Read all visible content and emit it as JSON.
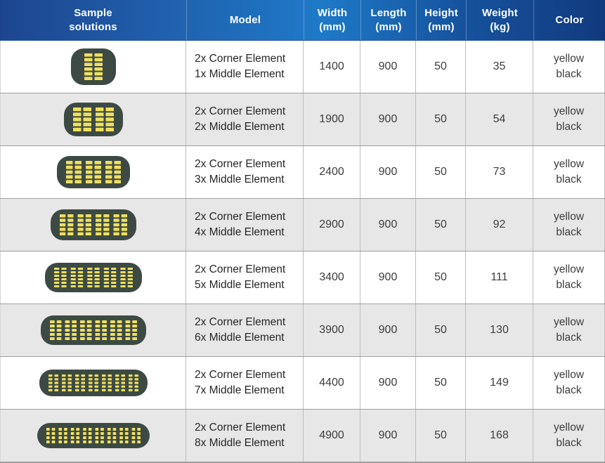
{
  "table": {
    "columns": [
      {
        "line1": "Sample",
        "line2": "solutions"
      },
      {
        "line1": "Model",
        "line2": ""
      },
      {
        "line1": "Width",
        "line2": "(mm)"
      },
      {
        "line1": "Length",
        "line2": "(mm)"
      },
      {
        "line1": "Height",
        "line2": "(mm)"
      },
      {
        "line1": "Weight",
        "line2": "(kg)"
      },
      {
        "line1": "Color",
        "line2": ""
      }
    ],
    "rows": [
      {
        "sample_icon": "modular-mat-top-view",
        "corner_elements": 2,
        "middle_elements": 1,
        "model_line1": "2x Corner Element",
        "model_line2": "1x Middle Element",
        "width_mm": "1400",
        "length_mm": "900",
        "height_mm": "50",
        "weight_kg": "35",
        "color_line1": "yellow",
        "color_line2": "black"
      },
      {
        "sample_icon": "modular-mat-top-view",
        "corner_elements": 2,
        "middle_elements": 2,
        "model_line1": "2x Corner Element",
        "model_line2": "2x Middle Element",
        "width_mm": "1900",
        "length_mm": "900",
        "height_mm": "50",
        "weight_kg": "54",
        "color_line1": "yellow",
        "color_line2": "black"
      },
      {
        "sample_icon": "modular-mat-top-view",
        "corner_elements": 2,
        "middle_elements": 3,
        "model_line1": "2x Corner Element",
        "model_line2": "3x Middle Element",
        "width_mm": "2400",
        "length_mm": "900",
        "height_mm": "50",
        "weight_kg": "73",
        "color_line1": "yellow",
        "color_line2": "black"
      },
      {
        "sample_icon": "modular-mat-top-view",
        "corner_elements": 2,
        "middle_elements": 4,
        "model_line1": "2x Corner Element",
        "model_line2": "4x Middle Element",
        "width_mm": "2900",
        "length_mm": "900",
        "height_mm": "50",
        "weight_kg": "92",
        "color_line1": "yellow",
        "color_line2": "black"
      },
      {
        "sample_icon": "modular-mat-top-view",
        "corner_elements": 2,
        "middle_elements": 5,
        "model_line1": "2x Corner Element",
        "model_line2": "5x Middle Element",
        "width_mm": "3400",
        "length_mm": "900",
        "height_mm": "50",
        "weight_kg": "111",
        "color_line1": "yellow",
        "color_line2": "black"
      },
      {
        "sample_icon": "modular-mat-top-view",
        "corner_elements": 2,
        "middle_elements": 6,
        "model_line1": "2x Corner Element",
        "model_line2": "6x Middle Element",
        "width_mm": "3900",
        "length_mm": "900",
        "height_mm": "50",
        "weight_kg": "130",
        "color_line1": "yellow",
        "color_line2": "black"
      },
      {
        "sample_icon": "modular-mat-top-view",
        "corner_elements": 2,
        "middle_elements": 7,
        "model_line1": "2x Corner Element",
        "model_line2": "7x Middle Element",
        "width_mm": "4400",
        "length_mm": "900",
        "height_mm": "50",
        "weight_kg": "149",
        "color_line1": "yellow",
        "color_line2": "black"
      },
      {
        "sample_icon": "modular-mat-top-view",
        "corner_elements": 2,
        "middle_elements": 8,
        "model_line1": "2x Corner Element",
        "model_line2": "8x Middle Element",
        "width_mm": "4900",
        "length_mm": "900",
        "height_mm": "50",
        "weight_kg": "168",
        "color_line1": "yellow",
        "color_line2": "black"
      }
    ],
    "colors": {
      "header_gradient": [
        "#1d458f",
        "#2061ae",
        "#1e7ac8",
        "#16539e",
        "#113a7e"
      ],
      "header_text": "#ffffff",
      "stripe": "#e8e7e7",
      "row_border": "#9f9f9f",
      "column_border": "#bdbdbd",
      "pill_body": "#3d4a44",
      "pill_dash": "#f0e05e"
    }
  }
}
